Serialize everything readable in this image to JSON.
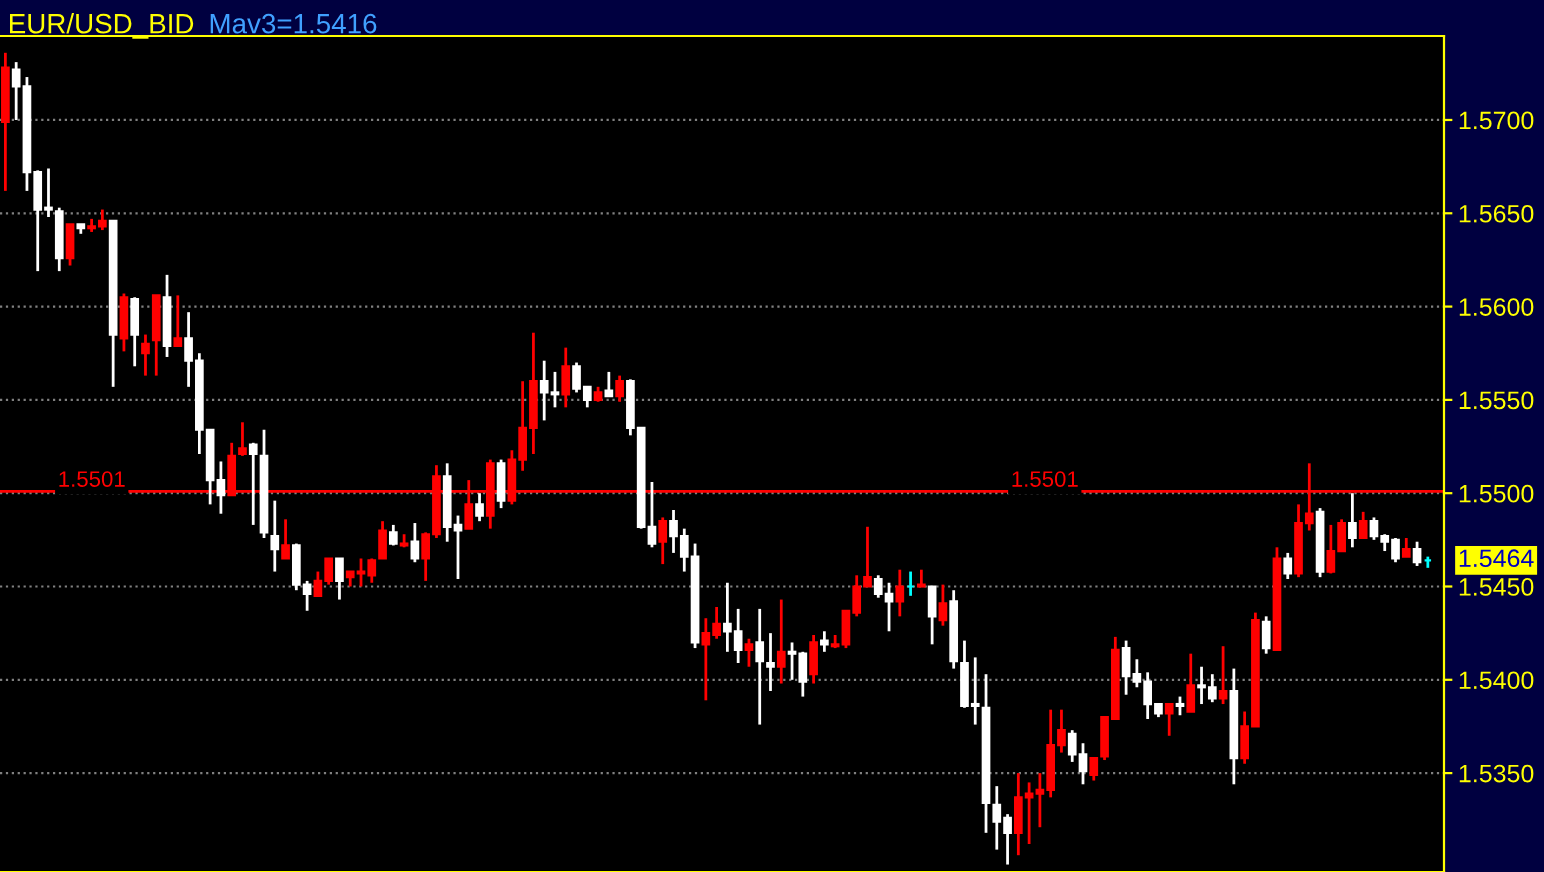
{
  "chart_data": {
    "type": "candlestick",
    "title": "EUR/USD_BID",
    "subtitle": "Mav3=1.5416",
    "categories": [
      null,
      null,
      null,
      null,
      null,
      null,
      null,
      null,
      null,
      null,
      null,
      null,
      null,
      null,
      null,
      null,
      null,
      null,
      null,
      null,
      null,
      null,
      null,
      null,
      null,
      null,
      null,
      null,
      null,
      null,
      null,
      null,
      null,
      null,
      null,
      null,
      null,
      null,
      null,
      null,
      null,
      null,
      null,
      null,
      null,
      null,
      null,
      null,
      null,
      null,
      null,
      null,
      null,
      null,
      null,
      null,
      null,
      null,
      null,
      null,
      null,
      null,
      null,
      null,
      null,
      null,
      null,
      null,
      null,
      null,
      null,
      null,
      null,
      null,
      null,
      null,
      null,
      null,
      null,
      null,
      null,
      null,
      null,
      null,
      null,
      null,
      null,
      null,
      null,
      null,
      null,
      null,
      null,
      null,
      null,
      null,
      null,
      null,
      null,
      null,
      null,
      null,
      null,
      null,
      null,
      null,
      null,
      null,
      null,
      null,
      null,
      null,
      null,
      null,
      null,
      null,
      null,
      null,
      null,
      null,
      null,
      null,
      null,
      null,
      null,
      null,
      null,
      null,
      null,
      null,
      null,
      null,
      null
    ],
    "ohlc": [
      [
        1.5699,
        1.5736,
        1.5662,
        1.5728
      ],
      [
        1.5727,
        1.5731,
        1.57,
        1.5718
      ],
      [
        1.5718,
        1.5723,
        1.5662,
        1.5672
      ],
      [
        1.5672,
        1.5673,
        1.5619,
        1.5652
      ],
      [
        1.5653,
        1.5674,
        1.5648,
        1.5652
      ],
      [
        1.5651,
        1.5653,
        1.5619,
        1.5626
      ],
      [
        1.5626,
        1.5644,
        1.5622,
        1.5644
      ],
      [
        1.5644,
        1.5644,
        1.5639,
        1.5642
      ],
      [
        1.5642,
        1.5647,
        1.564,
        1.5643
      ],
      [
        1.5643,
        1.5652,
        1.5641,
        1.5646
      ],
      [
        1.5646,
        1.5646,
        1.5557,
        1.5585
      ],
      [
        1.5583,
        1.5607,
        1.5576,
        1.5605
      ],
      [
        1.5604,
        1.5605,
        1.5568,
        1.5585
      ],
      [
        1.5575,
        1.5585,
        1.5563,
        1.558
      ],
      [
        1.5582,
        1.5606,
        1.5563,
        1.5606
      ],
      [
        1.5605,
        1.5617,
        1.5573,
        1.5579
      ],
      [
        1.5579,
        1.5606,
        1.5579,
        1.5583
      ],
      [
        1.5583,
        1.5597,
        1.5557,
        1.5571
      ],
      [
        1.5571,
        1.5575,
        1.5521,
        1.5534
      ],
      [
        1.5534,
        1.5534,
        1.5494,
        1.5507
      ],
      [
        1.5507,
        1.5517,
        1.5489,
        1.5499
      ],
      [
        1.5499,
        1.5527,
        1.5499,
        1.552
      ],
      [
        1.5521,
        1.5538,
        1.552,
        1.5524
      ],
      [
        1.5526,
        1.5527,
        1.5483,
        1.5521
      ],
      [
        1.552,
        1.5534,
        1.5476,
        1.5479
      ],
      [
        1.5477,
        1.5496,
        1.5458,
        1.547
      ],
      [
        1.5465,
        1.5486,
        1.5465,
        1.5472
      ],
      [
        1.5472,
        1.5473,
        1.5448,
        1.5451
      ],
      [
        1.5451,
        1.5453,
        1.5437,
        1.5446
      ],
      [
        1.5445,
        1.5458,
        1.5445,
        1.5453
      ],
      [
        1.5453,
        1.5465,
        1.5451,
        1.5465
      ],
      [
        1.5465,
        1.5465,
        1.5443,
        1.5453
      ],
      [
        1.5455,
        1.5458,
        1.545,
        1.5458
      ],
      [
        1.5457,
        1.5465,
        1.545,
        1.5458
      ],
      [
        1.5456,
        1.5465,
        1.5452,
        1.5464
      ],
      [
        1.5465,
        1.5485,
        1.5465,
        1.548
      ],
      [
        1.5479,
        1.5483,
        1.5472,
        1.5473
      ],
      [
        1.5472,
        1.5478,
        1.5471,
        1.5473
      ],
      [
        1.5474,
        1.5484,
        1.5463,
        1.5465
      ],
      [
        1.5465,
        1.5479,
        1.5453,
        1.5478
      ],
      [
        1.5478,
        1.5515,
        1.5476,
        1.5509
      ],
      [
        1.5509,
        1.5516,
        1.5474,
        1.5482
      ],
      [
        1.5483,
        1.5488,
        1.5454,
        1.548
      ],
      [
        1.5481,
        1.5507,
        1.5481,
        1.5494
      ],
      [
        1.5494,
        1.55,
        1.5485,
        1.5488
      ],
      [
        1.5488,
        1.5518,
        1.5481,
        1.5516
      ],
      [
        1.5516,
        1.5518,
        1.5492,
        1.5496
      ],
      [
        1.5496,
        1.5523,
        1.5494,
        1.5518
      ],
      [
        1.5518,
        1.556,
        1.5512,
        1.5535
      ],
      [
        1.5535,
        1.5586,
        1.5521,
        1.556
      ],
      [
        1.556,
        1.5571,
        1.5539,
        1.5554
      ],
      [
        1.5554,
        1.5565,
        1.5546,
        1.5553
      ],
      [
        1.5553,
        1.5578,
        1.5546,
        1.5568
      ],
      [
        1.5568,
        1.557,
        1.5554,
        1.5556
      ],
      [
        1.5557,
        1.5557,
        1.5546,
        1.555
      ],
      [
        1.555,
        1.5557,
        1.5549,
        1.5554
      ],
      [
        1.5555,
        1.5565,
        1.5552,
        1.5552
      ],
      [
        1.5552,
        1.5563,
        1.5549,
        1.556
      ],
      [
        1.556,
        1.5561,
        1.5531,
        1.5535
      ],
      [
        1.5535,
        1.5535,
        1.5481,
        1.5482
      ],
      [
        1.5482,
        1.5506,
        1.5471,
        1.5473
      ],
      [
        1.5474,
        1.5487,
        1.5462,
        1.5485
      ],
      [
        1.5485,
        1.5491,
        1.5468,
        1.5477
      ],
      [
        1.5477,
        1.5481,
        1.5458,
        1.5466
      ],
      [
        1.5466,
        1.5473,
        1.5417,
        1.542
      ],
      [
        1.5419,
        1.5433,
        1.5389,
        1.5425
      ],
      [
        1.5424,
        1.5439,
        1.5422,
        1.543
      ],
      [
        1.543,
        1.5452,
        1.5415,
        1.5426
      ],
      [
        1.5426,
        1.5438,
        1.5409,
        1.5416
      ],
      [
        1.5416,
        1.5422,
        1.5407,
        1.5419
      ],
      [
        1.542,
        1.5438,
        1.5376,
        1.541
      ],
      [
        1.5409,
        1.5425,
        1.5394,
        1.5407
      ],
      [
        1.5407,
        1.5443,
        1.5398,
        1.5415
      ],
      [
        1.5415,
        1.542,
        1.54,
        1.5414
      ],
      [
        1.5414,
        1.5415,
        1.5391,
        1.5399
      ],
      [
        1.5403,
        1.5424,
        1.5398,
        1.542
      ],
      [
        1.5421,
        1.5426,
        1.5415,
        1.5419
      ],
      [
        1.5418,
        1.5424,
        1.5417,
        1.5419
      ],
      [
        1.5419,
        1.5437,
        1.5417,
        1.5437
      ],
      [
        1.5436,
        1.5456,
        1.5434,
        1.545
      ],
      [
        1.545,
        1.5482,
        1.545,
        1.5455
      ],
      [
        1.5454,
        1.5456,
        1.5444,
        1.5446
      ],
      [
        1.5446,
        1.5452,
        1.5426,
        1.5442
      ],
      [
        1.5442,
        1.5459,
        1.5434,
        1.545
      ],
      [
        1.545,
        1.5458,
        1.5445,
        1.545
      ],
      [
        1.545,
        1.5459,
        1.545,
        1.5451
      ],
      [
        1.545,
        1.545,
        1.5419,
        1.5434
      ],
      [
        1.5432,
        1.5451,
        1.5429,
        1.5441
      ],
      [
        1.5442,
        1.5448,
        1.5406,
        1.541
      ],
      [
        1.5409,
        1.5421,
        1.5385,
        1.5386
      ],
      [
        1.5387,
        1.5412,
        1.5376,
        1.5386
      ],
      [
        1.5385,
        1.5403,
        1.5318,
        1.5334
      ],
      [
        1.5333,
        1.5343,
        1.5309,
        1.5324
      ],
      [
        1.5326,
        1.5328,
        1.5301,
        1.5318
      ],
      [
        1.5318,
        1.535,
        1.5306,
        1.5337
      ],
      [
        1.5337,
        1.5345,
        1.5312,
        1.5339
      ],
      [
        1.5339,
        1.535,
        1.5321,
        1.5341
      ],
      [
        1.5341,
        1.5384,
        1.5337,
        1.5365
      ],
      [
        1.5365,
        1.5384,
        1.5361,
        1.5373
      ],
      [
        1.5371,
        1.5373,
        1.5356,
        1.536
      ],
      [
        1.536,
        1.5366,
        1.5344,
        1.5351
      ],
      [
        1.5349,
        1.5358,
        1.5346,
        1.5358
      ],
      [
        1.5359,
        1.538,
        1.5357,
        1.538
      ],
      [
        1.5379,
        1.5423,
        1.5379,
        1.5416
      ],
      [
        1.5417,
        1.5421,
        1.5392,
        1.5402
      ],
      [
        1.5403,
        1.5411,
        1.5396,
        1.5399
      ],
      [
        1.5399,
        1.5404,
        1.5379,
        1.5387
      ],
      [
        1.5387,
        1.5387,
        1.538,
        1.5382
      ],
      [
        1.5382,
        1.5387,
        1.537,
        1.5387
      ],
      [
        1.5387,
        1.5391,
        1.5381,
        1.5386
      ],
      [
        1.5383,
        1.5414,
        1.5383,
        1.5397
      ],
      [
        1.5397,
        1.5407,
        1.5387,
        1.5396
      ],
      [
        1.5396,
        1.5403,
        1.5388,
        1.539
      ],
      [
        1.539,
        1.5418,
        1.5387,
        1.5394
      ],
      [
        1.5394,
        1.5406,
        1.5344,
        1.5358
      ],
      [
        1.5358,
        1.5383,
        1.5355,
        1.5375
      ],
      [
        1.5375,
        1.5436,
        1.5375,
        1.5432
      ],
      [
        1.5431,
        1.5434,
        1.5414,
        1.5417
      ],
      [
        1.5416,
        1.5471,
        1.5416,
        1.5465
      ],
      [
        1.5465,
        1.5468,
        1.5454,
        1.5457
      ],
      [
        1.5457,
        1.5494,
        1.5455,
        1.5484
      ],
      [
        1.5484,
        1.5516,
        1.548,
        1.5489
      ],
      [
        1.549,
        1.5492,
        1.5455,
        1.5458
      ],
      [
        1.5458,
        1.5483,
        1.5457,
        1.5469
      ],
      [
        1.5469,
        1.5486,
        1.5469,
        1.5484
      ],
      [
        1.5484,
        1.55,
        1.5471,
        1.5476
      ],
      [
        1.5476,
        1.549,
        1.5476,
        1.5485
      ],
      [
        1.5485,
        1.5487,
        1.5475,
        1.5477
      ],
      [
        1.5477,
        1.5478,
        1.5469,
        1.5474
      ],
      [
        1.5475,
        1.5476,
        1.5463,
        1.5465
      ],
      [
        1.5466,
        1.5476,
        1.5466,
        1.547
      ],
      [
        1.547,
        1.5474,
        1.5461,
        1.5463
      ],
      [
        1.5464,
        1.5466,
        1.546,
        1.5464
      ]
    ],
    "colors": [
      "#ff0000",
      "#ffffff",
      "#ffffff",
      "#ffffff",
      "#ffffff",
      "#ffffff",
      "#ff0000",
      "#ffffff",
      "#ff0000",
      "#ff0000",
      "#ffffff",
      "#ff0000",
      "#ffffff",
      "#ff0000",
      "#ff0000",
      "#ffffff",
      "#ff0000",
      "#ffffff",
      "#ffffff",
      "#ffffff",
      "#ffffff",
      "#ff0000",
      "#ff0000",
      "#ffffff",
      "#ffffff",
      "#ffffff",
      "#ff0000",
      "#ffffff",
      "#ffffff",
      "#ff0000",
      "#ff0000",
      "#ffffff",
      "#ff0000",
      "#ff0000",
      "#ff0000",
      "#ff0000",
      "#ffffff",
      "#ff0000",
      "#ffffff",
      "#ff0000",
      "#ff0000",
      "#ffffff",
      "#ffffff",
      "#ff0000",
      "#ffffff",
      "#ff0000",
      "#ffffff",
      "#ff0000",
      "#ff0000",
      "#ff0000",
      "#ffffff",
      "#ffffff",
      "#ff0000",
      "#ffffff",
      "#ffffff",
      "#ff0000",
      "#ffffff",
      "#ff0000",
      "#ffffff",
      "#ffffff",
      "#ffffff",
      "#ff0000",
      "#ffffff",
      "#ffffff",
      "#ffffff",
      "#ff0000",
      "#ff0000",
      "#ffffff",
      "#ffffff",
      "#ff0000",
      "#ffffff",
      "#ffffff",
      "#ff0000",
      "#ffffff",
      "#ffffff",
      "#ff0000",
      "#ffffff",
      "#ff0000",
      "#ff0000",
      "#ff0000",
      "#ff0000",
      "#ffffff",
      "#ffffff",
      "#ff0000",
      "#00ffff",
      "#ff0000",
      "#ffffff",
      "#ff0000",
      "#ffffff",
      "#ffffff",
      "#ffffff",
      "#ffffff",
      "#ffffff",
      "#ffffff",
      "#ff0000",
      "#ff0000",
      "#ff0000",
      "#ff0000",
      "#ff0000",
      "#ffffff",
      "#ffffff",
      "#ff0000",
      "#ff0000",
      "#ff0000",
      "#ffffff",
      "#ffffff",
      "#ffffff",
      "#ffffff",
      "#ff0000",
      "#ffffff",
      "#ff0000",
      "#ffffff",
      "#ffffff",
      "#ff0000",
      "#ffffff",
      "#ff0000",
      "#ff0000",
      "#ffffff",
      "#ff0000",
      "#ffffff",
      "#ff0000",
      "#ff0000",
      "#ffffff",
      "#ff0000",
      "#ff0000",
      "#ffffff",
      "#ff0000",
      "#ffffff",
      "#ffffff",
      "#ffffff",
      "#ff0000",
      "#ffffff",
      "#00ffff"
    ],
    "ylim": [
      1.5297,
      1.5745
    ],
    "yticks": [
      {
        "value": 1.535,
        "label": "1.5350"
      },
      {
        "value": 1.54,
        "label": "1.5400"
      },
      {
        "value": 1.545,
        "label": "1.5450"
      },
      {
        "value": 1.55,
        "label": "1.5500"
      },
      {
        "value": 1.555,
        "label": "1.5550"
      },
      {
        "value": 1.56,
        "label": "1.5600"
      },
      {
        "value": 1.565,
        "label": "1.5650"
      },
      {
        "value": 1.57,
        "label": "1.5700"
      }
    ],
    "ref_lines": [
      {
        "axis": "y",
        "value": 1.5501,
        "label": "1.5501",
        "color": "#ff0000"
      }
    ],
    "annotations": [
      "1.5464"
    ],
    "grid": "y"
  }
}
